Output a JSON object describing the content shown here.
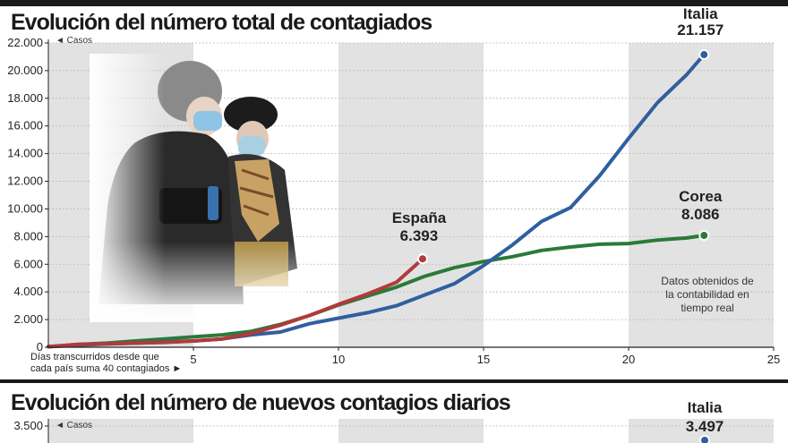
{
  "chart_data": [
    {
      "type": "line",
      "title": "Evolución del número total de contagiados",
      "ylabel": "◄ Casos",
      "xlabel": "Días transcurridos desde que cada país suma 40 contagiados ►",
      "xlabel_lines": [
        "Días transcurridos desde que",
        "cada país suma 40 contagiados ►"
      ],
      "xlim": [
        0,
        25
      ],
      "ylim": [
        0,
        22000
      ],
      "x_ticks": [
        5,
        10,
        15,
        20,
        25
      ],
      "y_ticks": [
        {
          "value": 0,
          "label": "0"
        },
        {
          "value": 2000,
          "label": "2.000"
        },
        {
          "value": 4000,
          "label": "4.000"
        },
        {
          "value": 6000,
          "label": "6.000"
        },
        {
          "value": 8000,
          "label": "8.000"
        },
        {
          "value": 10000,
          "label": "10.000"
        },
        {
          "value": 12000,
          "label": "12.000"
        },
        {
          "value": 14000,
          "label": "14.000"
        },
        {
          "value": 16000,
          "label": "16.000"
        },
        {
          "value": 18000,
          "label": "18.000"
        },
        {
          "value": 20000,
          "label": "20.000"
        },
        {
          "value": 22000,
          "label": "22.000"
        }
      ],
      "shaded_bands": [
        [
          0,
          5
        ],
        [
          10,
          15
        ],
        [
          20,
          25
        ]
      ],
      "series": [
        {
          "name": "Italia",
          "end_label": "21.157",
          "color": "#2f5f9f",
          "x": [
            0,
            1,
            2,
            3,
            4,
            5,
            6,
            7,
            8,
            9,
            10,
            11,
            12,
            13,
            14,
            15,
            16,
            17,
            18,
            19,
            20,
            21,
            22,
            22.6
          ],
          "y": [
            40,
            150,
            230,
            300,
            380,
            450,
            600,
            900,
            1100,
            1700,
            2100,
            2500,
            3000,
            3800,
            4600,
            5900,
            7400,
            9100,
            10100,
            12400,
            15100,
            17700,
            19700,
            21157
          ]
        },
        {
          "name": "Corea",
          "end_label": "8.086",
          "color": "#2a7a3a",
          "x": [
            0,
            1,
            2,
            3,
            4,
            5,
            6,
            7,
            8,
            9,
            10,
            11,
            12,
            13,
            14,
            15,
            16,
            17,
            18,
            19,
            20,
            21,
            22,
            22.6
          ],
          "y": [
            40,
            200,
            300,
            450,
            600,
            750,
            900,
            1150,
            1650,
            2300,
            3050,
            3700,
            4350,
            5150,
            5750,
            6200,
            6550,
            7000,
            7250,
            7450,
            7500,
            7750,
            7900,
            8086
          ]
        },
        {
          "name": "España",
          "end_label": "6.393",
          "color": "#b23a3a",
          "x": [
            0,
            1,
            2,
            3,
            4,
            5,
            6,
            7,
            8,
            9,
            10,
            11,
            12,
            12.9
          ],
          "y": [
            40,
            200,
            250,
            300,
            350,
            450,
            600,
            1000,
            1600,
            2300,
            3100,
            3850,
            4700,
            6393
          ]
        }
      ],
      "note": [
        "Datos obtenidos de",
        "la contabilidad en",
        "tiempo real"
      ]
    },
    {
      "type": "line",
      "title": "Evolución del número de nuevos contagios diarios",
      "ylabel": "◄ Casos",
      "y_ticks": [
        {
          "value": 3500,
          "label": "3.500"
        }
      ],
      "series": [
        {
          "name": "Italia",
          "end_label": "3.497",
          "color": "#2f5f9f"
        }
      ]
    }
  ]
}
